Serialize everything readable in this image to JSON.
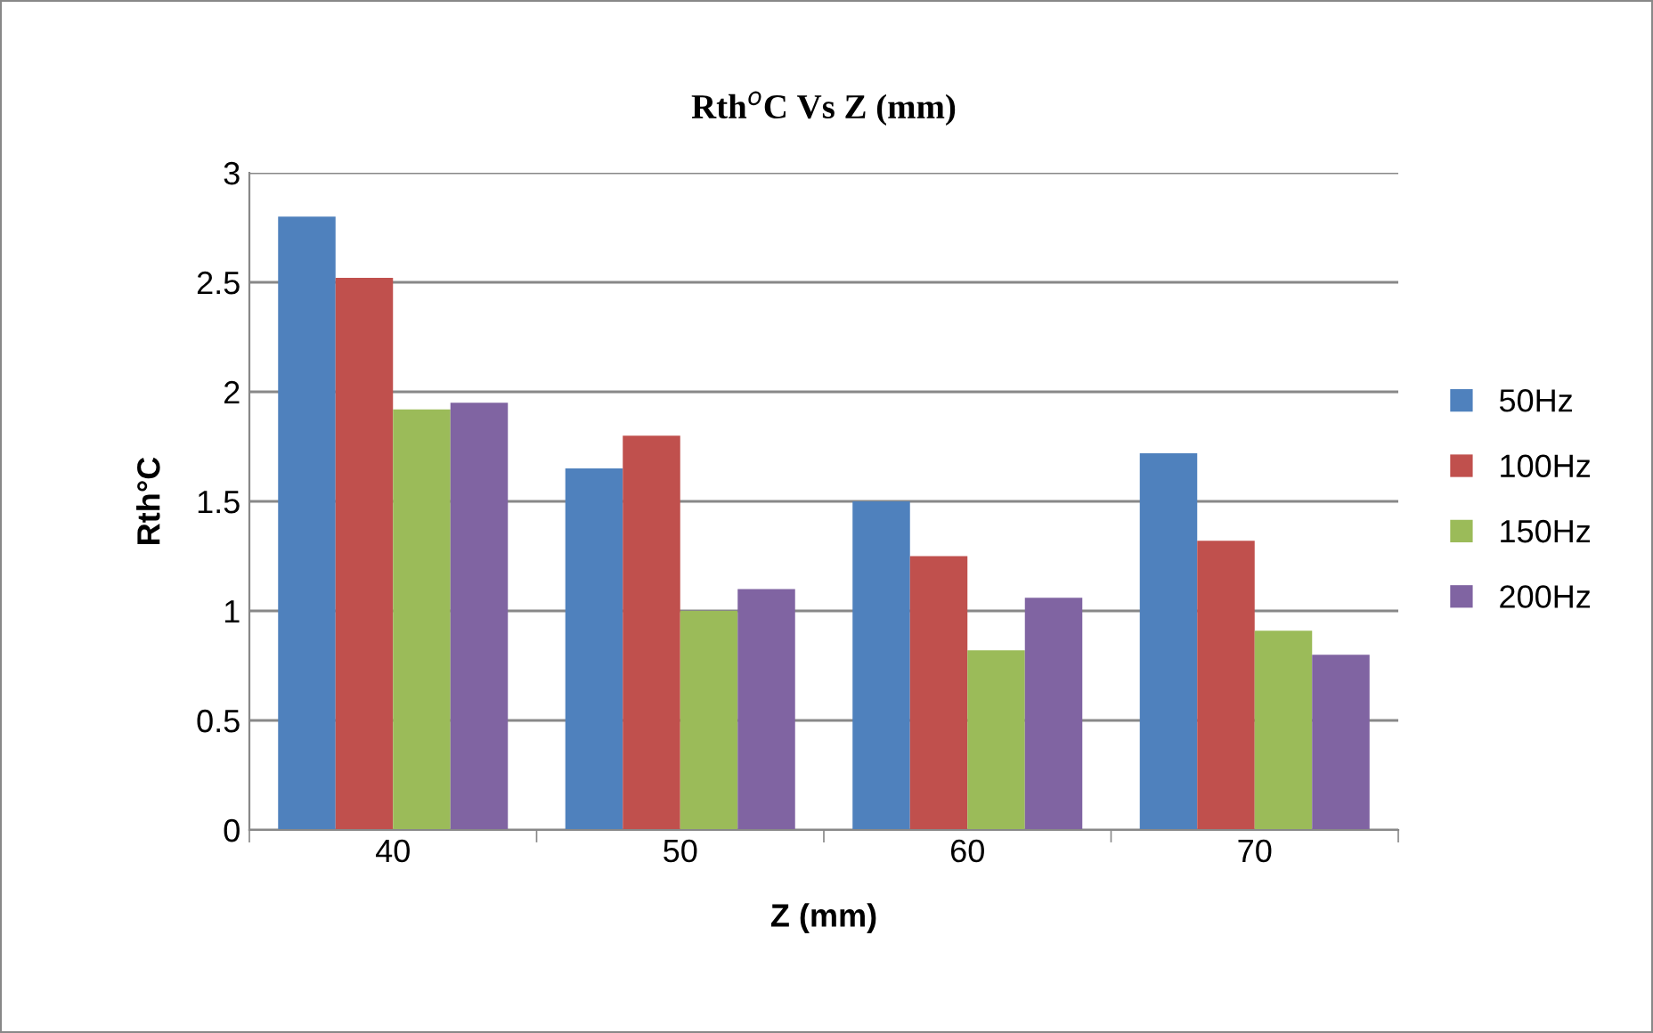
{
  "chart_data": {
    "type": "bar",
    "title": "Rth$^{o}$C Vs Z (mm)",
    "xlabel": "Z (mm)",
    "ylabel": "Rth°C",
    "categories": [
      "40",
      "50",
      "60",
      "70"
    ],
    "series": [
      {
        "name": "50Hz",
        "color": "#4f81bd",
        "values": [
          2.8,
          1.65,
          1.5,
          1.72
        ]
      },
      {
        "name": "100Hz",
        "color": "#c0504d",
        "values": [
          2.52,
          1.8,
          1.25,
          1.32
        ]
      },
      {
        "name": "150Hz",
        "color": "#9bbb59",
        "values": [
          1.92,
          1.0,
          0.82,
          0.91
        ]
      },
      {
        "name": "200Hz",
        "color": "#8064a2",
        "values": [
          1.95,
          1.1,
          1.06,
          0.8
        ]
      }
    ],
    "ylim": [
      0,
      3
    ],
    "yticks": [
      0,
      0.5,
      1,
      1.5,
      2,
      2.5,
      3
    ],
    "grid": "y",
    "legend": "right"
  }
}
